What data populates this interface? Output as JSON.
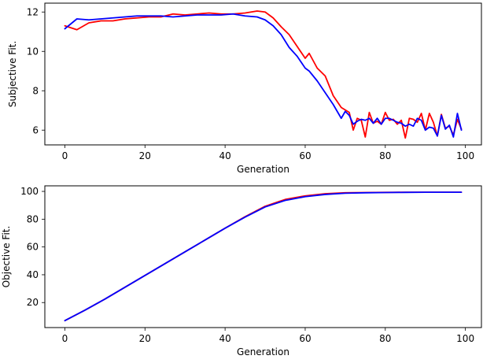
{
  "chart_data": [
    {
      "type": "line",
      "xlabel": "Generation",
      "ylabel": "Subjective Fit.",
      "xlim": [
        -5,
        104
      ],
      "ylim": [
        5.25,
        12.45
      ],
      "xticks": [
        0,
        20,
        40,
        60,
        80,
        100
      ],
      "yticks": [
        6,
        8,
        10,
        12
      ],
      "grid": false,
      "series": [
        {
          "color": "#ff0000",
          "x": [
            0,
            3,
            6,
            9,
            12,
            15,
            18,
            21,
            24,
            27,
            30,
            33,
            36,
            39,
            42,
            45,
            48,
            50,
            52,
            54,
            56,
            58,
            60,
            61,
            63,
            65,
            67,
            69,
            71,
            72,
            73,
            74,
            75,
            76,
            77,
            78,
            79,
            80,
            81,
            82,
            83,
            84,
            85,
            86,
            87,
            88,
            89,
            90,
            91,
            92,
            93,
            94,
            95,
            96,
            97,
            98,
            99
          ],
          "y": [
            11.3,
            11.1,
            11.45,
            11.55,
            11.55,
            11.65,
            11.7,
            11.75,
            11.75,
            11.9,
            11.85,
            11.9,
            11.95,
            11.9,
            11.9,
            11.95,
            12.05,
            12.0,
            11.7,
            11.25,
            10.85,
            10.25,
            9.65,
            9.9,
            9.15,
            8.75,
            7.75,
            7.15,
            6.9,
            6.0,
            6.6,
            6.5,
            5.65,
            6.9,
            6.35,
            6.45,
            6.3,
            6.9,
            6.5,
            6.55,
            6.3,
            6.5,
            5.6,
            6.6,
            6.55,
            6.4,
            6.85,
            6.0,
            6.85,
            6.4,
            5.7,
            6.8,
            6.1,
            6.2,
            5.75,
            6.55,
            6.05
          ]
        },
        {
          "color": "#0000ff",
          "x": [
            0,
            3,
            6,
            9,
            12,
            15,
            18,
            21,
            24,
            27,
            30,
            33,
            36,
            39,
            42,
            45,
            48,
            50,
            52,
            54,
            56,
            58,
            60,
            61,
            63,
            65,
            67,
            69,
            70,
            71,
            72,
            73,
            74,
            75,
            76,
            77,
            78,
            79,
            80,
            81,
            82,
            83,
            84,
            85,
            86,
            87,
            88,
            89,
            90,
            91,
            92,
            93,
            94,
            95,
            96,
            97,
            98,
            99
          ],
          "y": [
            11.15,
            11.65,
            11.6,
            11.65,
            11.7,
            11.75,
            11.8,
            11.8,
            11.8,
            11.75,
            11.8,
            11.85,
            11.85,
            11.85,
            11.9,
            11.8,
            11.75,
            11.6,
            11.3,
            10.85,
            10.2,
            9.75,
            9.15,
            9.0,
            8.5,
            7.9,
            7.3,
            6.6,
            6.95,
            6.75,
            6.3,
            6.45,
            6.55,
            6.5,
            6.6,
            6.35,
            6.6,
            6.3,
            6.6,
            6.6,
            6.5,
            6.4,
            6.35,
            6.2,
            6.3,
            6.2,
            6.6,
            6.5,
            6.0,
            6.15,
            6.1,
            5.7,
            6.75,
            6.05,
            6.25,
            5.65,
            6.85,
            6.0
          ]
        }
      ]
    },
    {
      "type": "line",
      "xlabel": "Generation",
      "ylabel": "Objective Fit.",
      "xlim": [
        -5,
        104
      ],
      "ylim": [
        2,
        104
      ],
      "xticks": [
        0,
        20,
        40,
        60,
        80,
        100
      ],
      "yticks": [
        20,
        40,
        60,
        80,
        100
      ],
      "grid": false,
      "series": [
        {
          "color": "#ff0000",
          "x": [
            0,
            5,
            10,
            15,
            20,
            25,
            30,
            35,
            40,
            45,
            50,
            55,
            60,
            65,
            70,
            75,
            80,
            85,
            90,
            95,
            99
          ],
          "y": [
            7,
            14.5,
            22.5,
            31,
            39.5,
            48,
            56.5,
            65,
            73.5,
            81.8,
            89.3,
            94.2,
            96.8,
            98.3,
            99.0,
            99.2,
            99.3,
            99.4,
            99.4,
            99.4,
            99.4
          ]
        },
        {
          "color": "#0000ff",
          "x": [
            0,
            5,
            10,
            15,
            20,
            25,
            30,
            35,
            40,
            45,
            50,
            55,
            60,
            65,
            70,
            75,
            80,
            85,
            90,
            95,
            99
          ],
          "y": [
            7,
            14.5,
            22.5,
            31,
            39.5,
            48,
            56.5,
            65,
            73.5,
            81.5,
            88.8,
            93.5,
            96.2,
            97.8,
            98.7,
            99.0,
            99.2,
            99.3,
            99.4,
            99.4,
            99.4
          ]
        }
      ]
    }
  ]
}
